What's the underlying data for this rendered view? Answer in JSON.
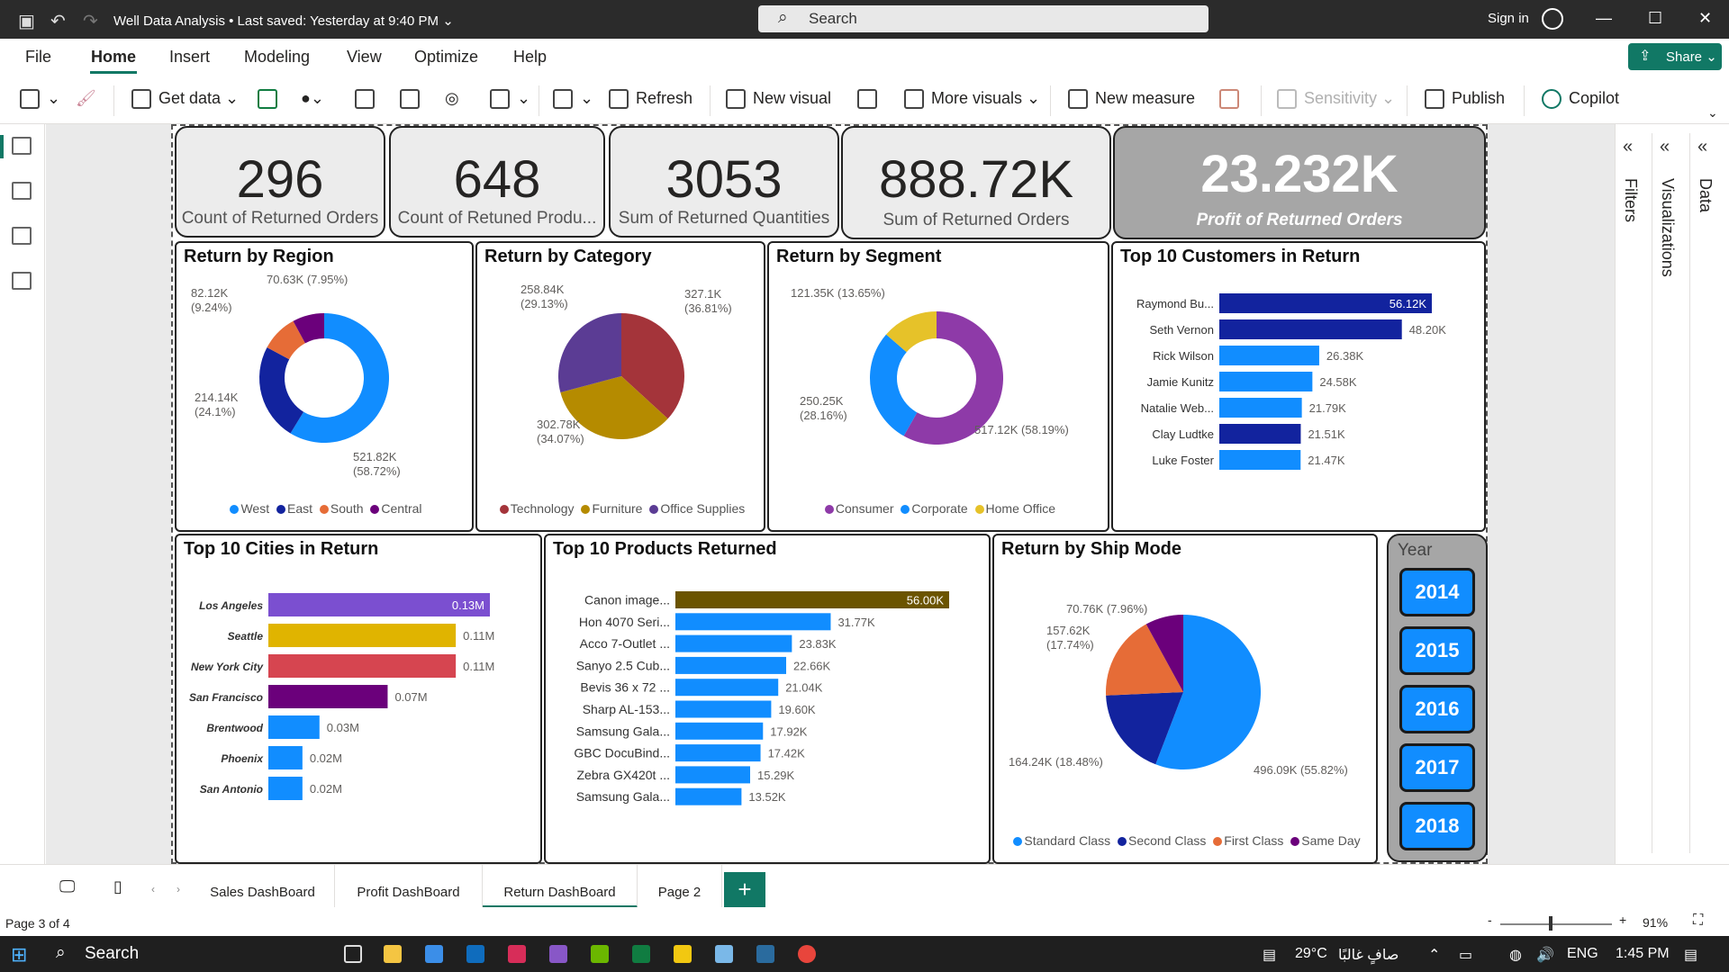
{
  "window": {
    "title": "Well Data Analysis",
    "saved": "Last saved: Yesterday at 9:40 PM",
    "search_placeholder": "Search",
    "sign_in": "Sign in"
  },
  "menu": {
    "items": [
      "File",
      "Home",
      "Insert",
      "Modeling",
      "View",
      "Optimize",
      "Help"
    ],
    "share": "Share"
  },
  "ribbon": {
    "get_data": "Get data",
    "refresh": "Refresh",
    "new_visual": "New visual",
    "more_visuals": "More visuals",
    "new_measure": "New measure",
    "sensitivity": "Sensitivity",
    "publish": "Publish",
    "copilot": "Copilot"
  },
  "kpis": [
    {
      "value": "296",
      "label": "Count of Returned Orders"
    },
    {
      "value": "648",
      "label": "Count of Retuned Produ..."
    },
    {
      "value": "3053",
      "label": "Sum of Returned Quantities"
    },
    {
      "value": "888.72K",
      "label": "Sum of Returned Orders"
    },
    {
      "value": "23.232K",
      "label": "Profit of Returned Orders"
    }
  ],
  "region": {
    "title": "Return by Region",
    "legend": [
      "West",
      "East",
      "South",
      "Central"
    ],
    "colors": [
      "#118dff",
      "#12239e",
      "#e66c37",
      "#6b007b"
    ],
    "chart_data": {
      "type": "pie",
      "categories": [
        "West",
        "East",
        "South",
        "Central"
      ],
      "values": [
        521.82,
        214.14,
        82.12,
        70.63
      ],
      "labels": [
        "521.82K (58.72%)",
        "214.14K (24.1%)",
        "82.12K (9.24%)",
        "70.63K (7.95%)"
      ]
    }
  },
  "category": {
    "title": "Return by Category",
    "legend": [
      "Technology",
      "Furniture",
      "Office Supplies"
    ],
    "colors": [
      "#a4343a",
      "#b58b00",
      "#5b3c94"
    ],
    "chart_data": {
      "type": "pie",
      "categories": [
        "Technology",
        "Furniture",
        "Office Supplies"
      ],
      "values": [
        327.1,
        302.78,
        258.84
      ],
      "labels": [
        "327.1K (36.81%)",
        "302.78K (34.07%)",
        "258.84K (29.13%)"
      ]
    }
  },
  "segment": {
    "title": "Return by Segment",
    "legend": [
      "Consumer",
      "Corporate",
      "Home Office"
    ],
    "colors": [
      "#8e3aa8",
      "#118dff",
      "#e6c229"
    ],
    "chart_data": {
      "type": "pie",
      "categories": [
        "Consumer",
        "Corporate",
        "Home Office"
      ],
      "values": [
        517.12,
        250.25,
        121.35
      ],
      "labels": [
        "517.12K (58.19%)",
        "250.25K (28.16%)",
        "121.35K (13.65%)"
      ]
    }
  },
  "customers": {
    "title": "Top 10 Customers in Return",
    "chart_data": {
      "type": "bar",
      "categories": [
        "Raymond Bu...",
        "Seth Vernon",
        "Rick Wilson",
        "Jamie Kunitz",
        "Natalie Web...",
        "Clay Ludtke",
        "Luke Foster"
      ],
      "values": [
        56.12,
        48.2,
        26.38,
        24.58,
        21.79,
        21.51,
        21.47
      ],
      "labels": [
        "56.12K",
        "48.20K",
        "26.38K",
        "24.58K",
        "21.79K",
        "21.51K",
        "21.47K"
      ],
      "colors": [
        "#12239e",
        "#12239e",
        "#118dff",
        "#118dff",
        "#118dff",
        "#12239e",
        "#118dff"
      ]
    }
  },
  "cities": {
    "title": "Top 10 Cities in Return",
    "chart_data": {
      "type": "bar",
      "categories": [
        "Los Angeles",
        "Seattle",
        "New York City",
        "San Francisco",
        "Brentwood",
        "Phoenix",
        "San Antonio"
      ],
      "values": [
        0.13,
        0.11,
        0.11,
        0.07,
        0.03,
        0.02,
        0.02
      ],
      "labels": [
        "0.13M",
        "0.11M",
        "0.11M",
        "0.07M",
        "0.03M",
        "0.02M",
        "0.02M"
      ],
      "colors": [
        "#7b4fd0",
        "#e0b400",
        "#d64550",
        "#6b007b",
        "#118dff",
        "#118dff",
        "#118dff"
      ]
    }
  },
  "products": {
    "title": "Top 10 Products Returned",
    "chart_data": {
      "type": "bar",
      "categories": [
        "Canon image...",
        "Hon 4070 Seri...",
        "Acco 7-Outlet ...",
        "Sanyo 2.5 Cub...",
        "Bevis 36 x 72 ...",
        "Sharp AL-153...",
        "Samsung Gala...",
        "GBC DocuBind...",
        "Zebra GX420t ...",
        "Samsung Gala..."
      ],
      "values": [
        56.0,
        31.77,
        23.83,
        22.66,
        21.04,
        19.6,
        17.92,
        17.42,
        15.29,
        13.52
      ],
      "labels": [
        "56.00K",
        "31.77K",
        "23.83K",
        "22.66K",
        "21.04K",
        "19.60K",
        "17.92K",
        "17.42K",
        "15.29K",
        "13.52K"
      ],
      "colors": [
        "#6b5400",
        "#118dff",
        "#118dff",
        "#118dff",
        "#118dff",
        "#118dff",
        "#118dff",
        "#118dff",
        "#118dff",
        "#118dff"
      ]
    }
  },
  "shipmode": {
    "title": "Return by Ship Mode",
    "legend": [
      "Standard Class",
      "Second Class",
      "First Class",
      "Same Day"
    ],
    "colors": [
      "#118dff",
      "#12239e",
      "#e66c37",
      "#6b007b"
    ],
    "chart_data": {
      "type": "pie",
      "categories": [
        "Standard Class",
        "Second Class",
        "First Class",
        "Same Day"
      ],
      "values": [
        496.09,
        164.24,
        157.62,
        70.76
      ],
      "labels": [
        "496.09K (55.82%)",
        "164.24K (18.48%)",
        "157.62K (17.74%)",
        "70.76K (7.96%)"
      ]
    }
  },
  "slicer": {
    "title": "Year",
    "years": [
      "2014",
      "2015",
      "2016",
      "2017",
      "2018"
    ]
  },
  "panes": {
    "filters": "Filters",
    "visualizations": "Visualizations",
    "data": "Data"
  },
  "tabs": [
    "Sales DashBoard",
    "Profit DashBoard",
    "Return DashBoard",
    "Page 2"
  ],
  "status": {
    "page": "Page 3 of 4",
    "zoom": "91%"
  },
  "taskbar": {
    "search": "Search",
    "weather": "29°C",
    "weather_desc": "صافٍ غالبًا",
    "lang": "ENG",
    "time": "1:45 PM"
  }
}
